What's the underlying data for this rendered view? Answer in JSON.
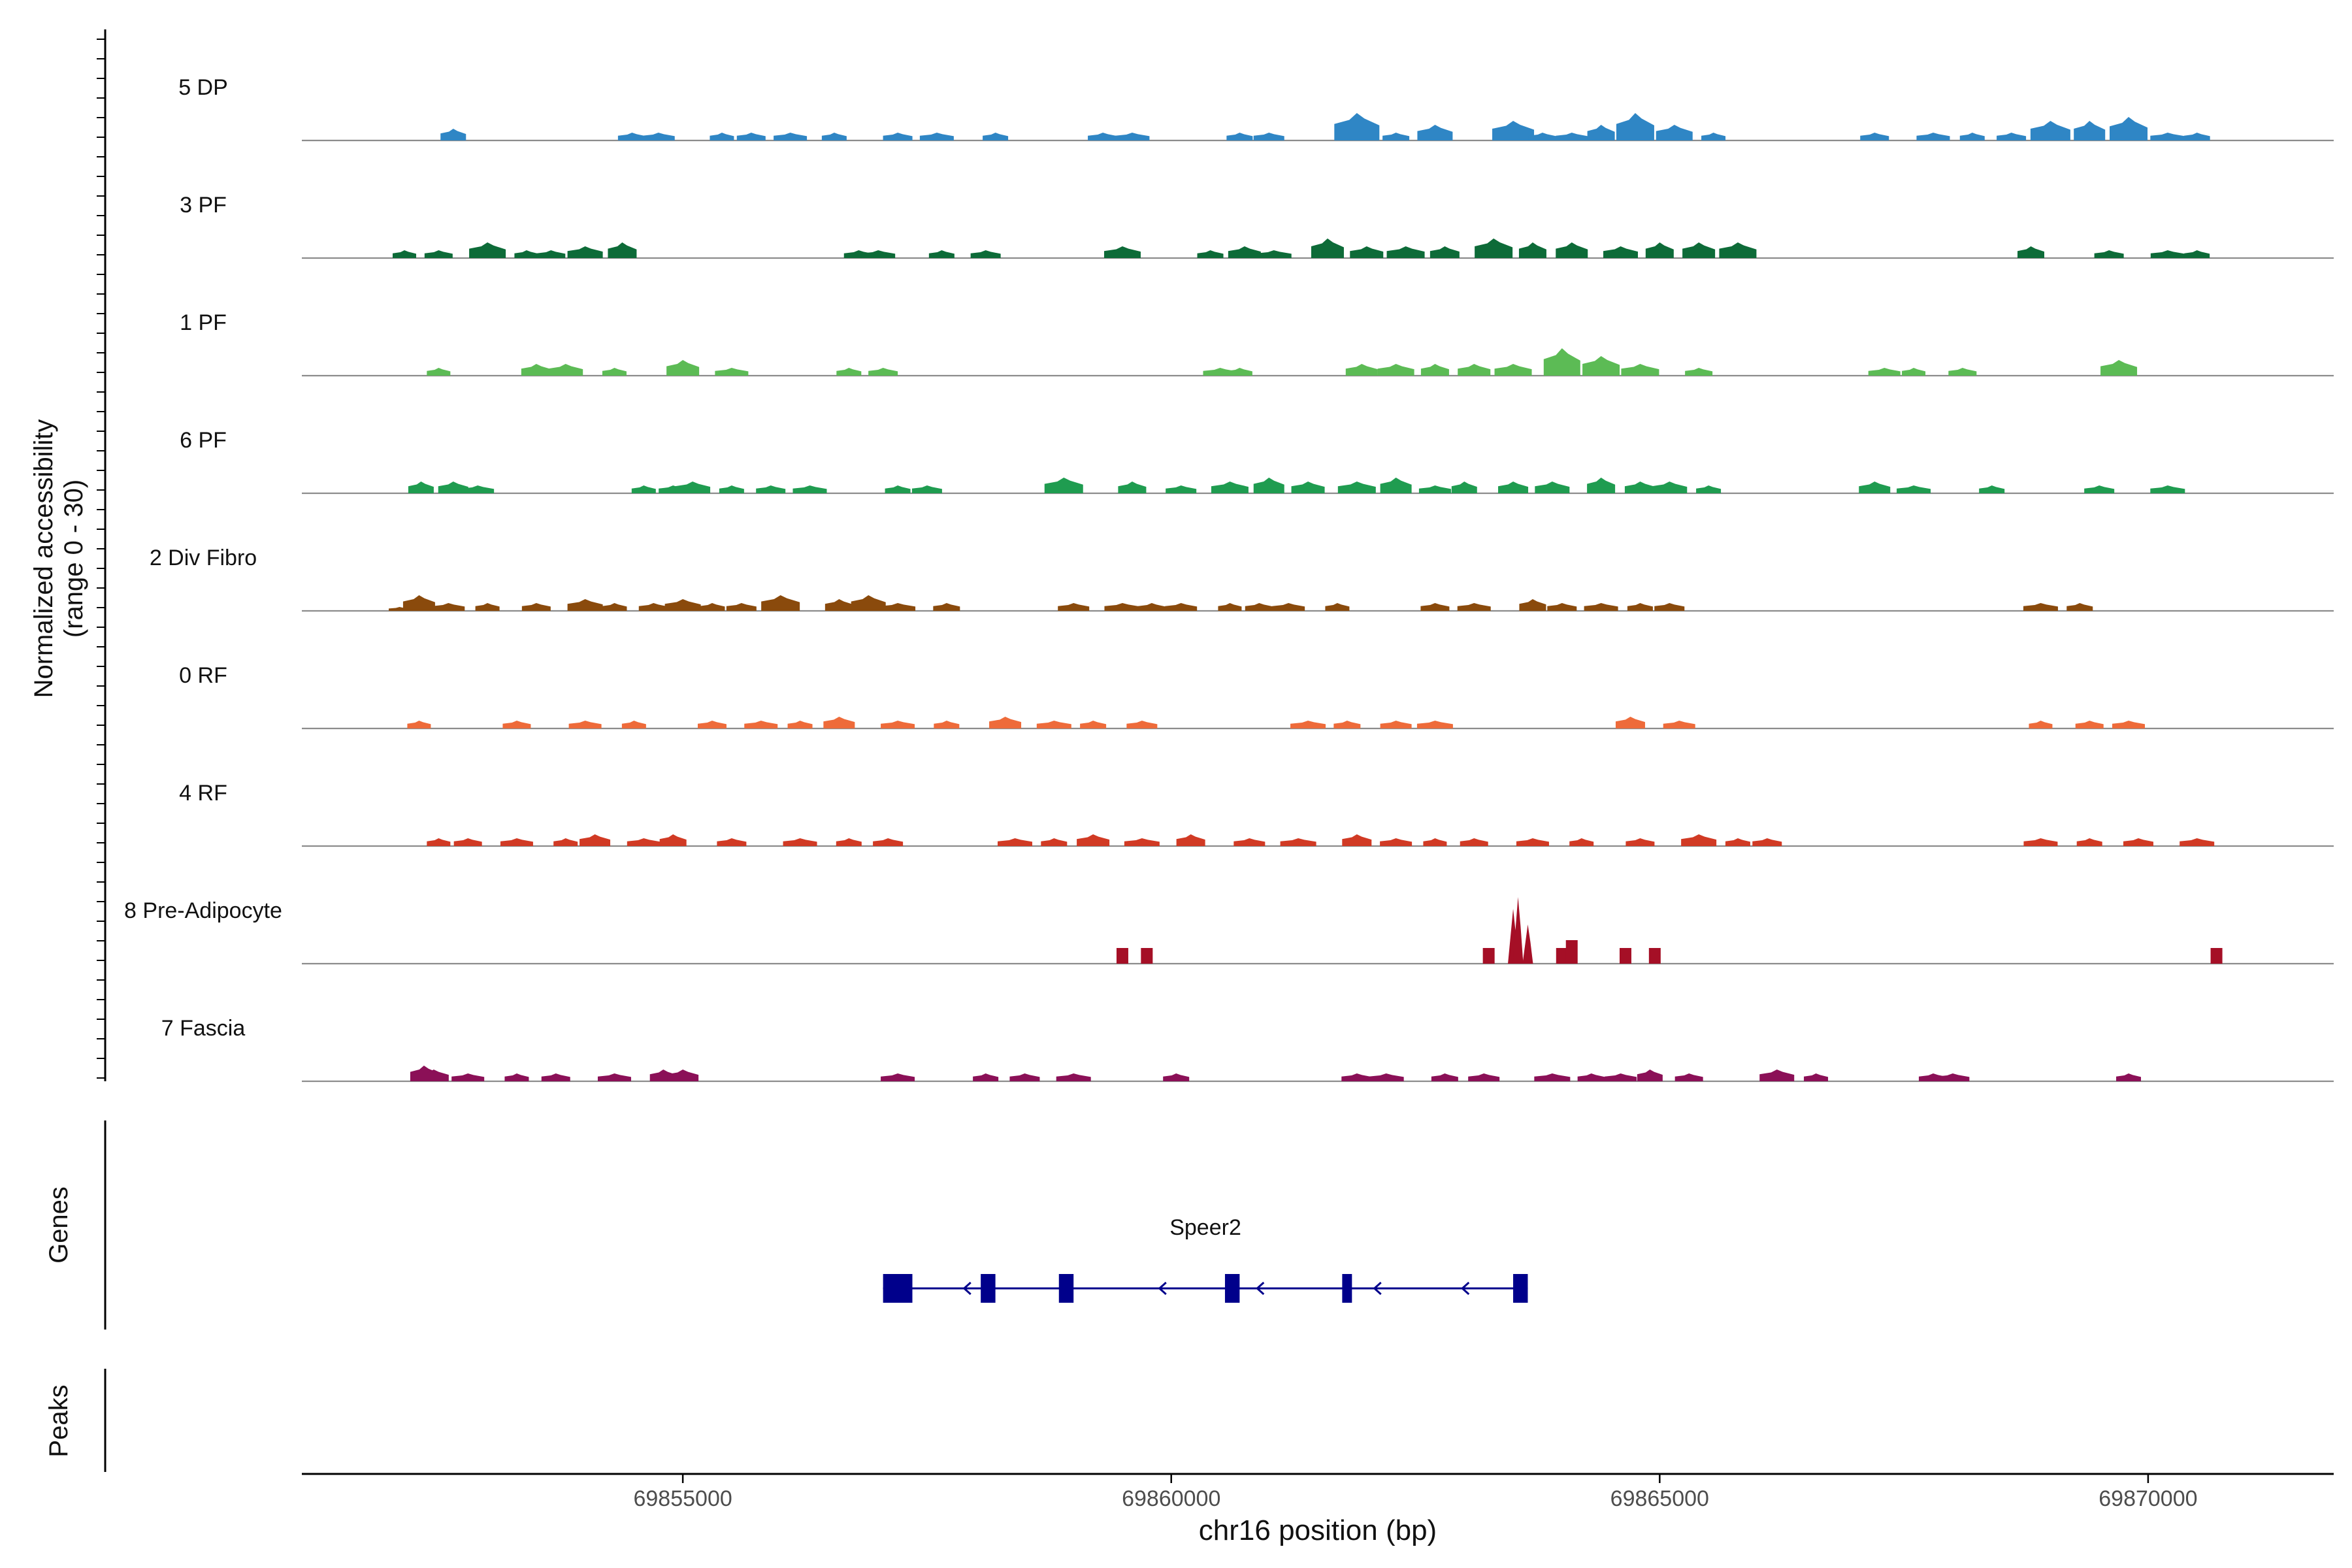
{
  "chart_data": {
    "type": "area",
    "title": "",
    "chromosome": "chr16",
    "xlabel": "chr16 position (bp)",
    "ylabel": "Normalized accessibility",
    "ylabel_range": "(range 0 - 30)",
    "xlim": [
      69851100,
      69871900
    ],
    "ylim": [
      0,
      30
    ],
    "x_ticks": [
      69855000,
      69860000,
      69865000,
      69870000
    ],
    "x_tick_labels": [
      "69855000",
      "69860000",
      "69865000",
      "69870000"
    ],
    "tracks": [
      {
        "name": "5 DP",
        "color": "#2f86c5",
        "peaks": [
          [
            69852650,
            3
          ],
          [
            69854480,
            2
          ],
          [
            69854750,
            2
          ],
          [
            69855400,
            2
          ],
          [
            69855700,
            2
          ],
          [
            69856100,
            2
          ],
          [
            69856550,
            2
          ],
          [
            69857200,
            2
          ],
          [
            69857600,
            2
          ],
          [
            69858200,
            2
          ],
          [
            69859300,
            2
          ],
          [
            69859600,
            2
          ],
          [
            69860700,
            2
          ],
          [
            69861000,
            2
          ],
          [
            69861900,
            7
          ],
          [
            69862300,
            2
          ],
          [
            69862700,
            4
          ],
          [
            69863500,
            5
          ],
          [
            69863800,
            2
          ],
          [
            69864100,
            2
          ],
          [
            69864400,
            4
          ],
          [
            69864750,
            7
          ],
          [
            69865150,
            4
          ],
          [
            69865550,
            2
          ],
          [
            69867200,
            2
          ],
          [
            69867800,
            2
          ],
          [
            69868200,
            2
          ],
          [
            69868600,
            2
          ],
          [
            69869000,
            5
          ],
          [
            69869400,
            5
          ],
          [
            69869800,
            6
          ],
          [
            69870200,
            2
          ],
          [
            69870500,
            2
          ]
        ]
      },
      {
        "name": "3 PF",
        "color": "#0d6b38",
        "peaks": [
          [
            69852150,
            2
          ],
          [
            69852500,
            2
          ],
          [
            69853000,
            4
          ],
          [
            69853400,
            2
          ],
          [
            69853650,
            2
          ],
          [
            69854000,
            3
          ],
          [
            69854380,
            4
          ],
          [
            69856800,
            2
          ],
          [
            69857000,
            2
          ],
          [
            69857650,
            2
          ],
          [
            69858100,
            2
          ],
          [
            69859500,
            3
          ],
          [
            69860400,
            2
          ],
          [
            69860750,
            3
          ],
          [
            69861050,
            2
          ],
          [
            69861600,
            5
          ],
          [
            69862000,
            3
          ],
          [
            69862400,
            3
          ],
          [
            69862800,
            3
          ],
          [
            69863300,
            5
          ],
          [
            69863700,
            4
          ],
          [
            69864100,
            4
          ],
          [
            69864600,
            3
          ],
          [
            69865000,
            4
          ],
          [
            69865400,
            4
          ],
          [
            69865800,
            4
          ],
          [
            69868800,
            3
          ],
          [
            69869600,
            2
          ],
          [
            69870200,
            2
          ],
          [
            69870500,
            2
          ]
        ]
      },
      {
        "name": "1 PF",
        "color": "#5cbb55",
        "peaks": [
          [
            69852500,
            2
          ],
          [
            69853500,
            3
          ],
          [
            69853800,
            3
          ],
          [
            69854300,
            2
          ],
          [
            69855000,
            4
          ],
          [
            69855500,
            2
          ],
          [
            69856700,
            2
          ],
          [
            69857050,
            2
          ],
          [
            69860500,
            2
          ],
          [
            69860700,
            2
          ],
          [
            69861950,
            3
          ],
          [
            69862300,
            3
          ],
          [
            69862700,
            3
          ],
          [
            69863100,
            3
          ],
          [
            69863500,
            3
          ],
          [
            69864000,
            7
          ],
          [
            69864400,
            5
          ],
          [
            69864800,
            3
          ],
          [
            69865400,
            2
          ],
          [
            69867300,
            2
          ],
          [
            69867600,
            2
          ],
          [
            69868100,
            2
          ],
          [
            69869700,
            4
          ]
        ]
      },
      {
        "name": "6 PF",
        "color": "#1f9c50",
        "peaks": [
          [
            69852320,
            3
          ],
          [
            69852650,
            3
          ],
          [
            69852900,
            2
          ],
          [
            69854600,
            2
          ],
          [
            69854900,
            2
          ],
          [
            69855100,
            3
          ],
          [
            69855500,
            2
          ],
          [
            69855900,
            2
          ],
          [
            69856300,
            2
          ],
          [
            69857200,
            2
          ],
          [
            69857500,
            2
          ],
          [
            69858900,
            4
          ],
          [
            69859600,
            3
          ],
          [
            69860100,
            2
          ],
          [
            69860600,
            3
          ],
          [
            69861000,
            4
          ],
          [
            69861400,
            3
          ],
          [
            69861900,
            3
          ],
          [
            69862300,
            4
          ],
          [
            69862700,
            2
          ],
          [
            69863000,
            3
          ],
          [
            69863500,
            3
          ],
          [
            69863900,
            3
          ],
          [
            69864400,
            4
          ],
          [
            69864800,
            3
          ],
          [
            69865100,
            3
          ],
          [
            69865500,
            2
          ],
          [
            69867200,
            3
          ],
          [
            69867600,
            2
          ],
          [
            69868400,
            2
          ],
          [
            69869500,
            2
          ],
          [
            69870200,
            2
          ]
        ]
      },
      {
        "name": "2 Div Fibro",
        "color": "#8a4a0c",
        "peaks": [
          [
            69852100,
            1
          ],
          [
            69852300,
            4
          ],
          [
            69852600,
            2
          ],
          [
            69853000,
            2
          ],
          [
            69853500,
            2
          ],
          [
            69854000,
            3
          ],
          [
            69854300,
            2
          ],
          [
            69854700,
            2
          ],
          [
            69855000,
            3
          ],
          [
            69855300,
            2
          ],
          [
            69855600,
            2
          ],
          [
            69856000,
            4
          ],
          [
            69856600,
            3
          ],
          [
            69856900,
            4
          ],
          [
            69857200,
            2
          ],
          [
            69857700,
            2
          ],
          [
            69859000,
            2
          ],
          [
            69859500,
            2
          ],
          [
            69859800,
            2
          ],
          [
            69860100,
            2
          ],
          [
            69860600,
            2
          ],
          [
            69860900,
            2
          ],
          [
            69861200,
            2
          ],
          [
            69861700,
            2
          ],
          [
            69862700,
            2
          ],
          [
            69863100,
            2
          ],
          [
            69863700,
            3
          ],
          [
            69864000,
            2
          ],
          [
            69864400,
            2
          ],
          [
            69864800,
            2
          ],
          [
            69865100,
            2
          ],
          [
            69868900,
            2
          ],
          [
            69869300,
            2
          ]
        ]
      },
      {
        "name": "0 RF",
        "color": "#ee6b3a",
        "peaks": [
          [
            69852300,
            2
          ],
          [
            69853300,
            2
          ],
          [
            69854000,
            2
          ],
          [
            69854500,
            2
          ],
          [
            69855300,
            2
          ],
          [
            69855800,
            2
          ],
          [
            69856200,
            2
          ],
          [
            69856600,
            3
          ],
          [
            69857200,
            2
          ],
          [
            69857700,
            2
          ],
          [
            69858300,
            3
          ],
          [
            69858800,
            2
          ],
          [
            69859200,
            2
          ],
          [
            69859700,
            2
          ],
          [
            69861400,
            2
          ],
          [
            69861800,
            2
          ],
          [
            69862300,
            2
          ],
          [
            69862700,
            2
          ],
          [
            69864700,
            3
          ],
          [
            69865200,
            2
          ],
          [
            69868900,
            2
          ],
          [
            69869400,
            2
          ],
          [
            69869800,
            2
          ]
        ]
      },
      {
        "name": "4 RF",
        "color": "#d13a24",
        "peaks": [
          [
            69852500,
            2
          ],
          [
            69852800,
            2
          ],
          [
            69853300,
            2
          ],
          [
            69853800,
            2
          ],
          [
            69854100,
            3
          ],
          [
            69854600,
            2
          ],
          [
            69854900,
            3
          ],
          [
            69855500,
            2
          ],
          [
            69856200,
            2
          ],
          [
            69856700,
            2
          ],
          [
            69857100,
            2
          ],
          [
            69858400,
            2
          ],
          [
            69858800,
            2
          ],
          [
            69859200,
            3
          ],
          [
            69859700,
            2
          ],
          [
            69860200,
            3
          ],
          [
            69860800,
            2
          ],
          [
            69861300,
            2
          ],
          [
            69861900,
            3
          ],
          [
            69862300,
            2
          ],
          [
            69862700,
            2
          ],
          [
            69863100,
            2
          ],
          [
            69863700,
            2
          ],
          [
            69864200,
            2
          ],
          [
            69864800,
            2
          ],
          [
            69865400,
            3
          ],
          [
            69865800,
            2
          ],
          [
            69866100,
            2
          ],
          [
            69868900,
            2
          ],
          [
            69869400,
            2
          ],
          [
            69869900,
            2
          ],
          [
            69870500,
            2
          ]
        ]
      },
      {
        "name": "8 Pre-Adipocyte",
        "color": "#a50f26",
        "peaks": [
          [
            69859500,
            4
          ],
          [
            69859750,
            4
          ],
          [
            69863250,
            4
          ],
          [
            69863500,
            14
          ],
          [
            69863550,
            17
          ],
          [
            69863650,
            10
          ],
          [
            69864000,
            4
          ],
          [
            69864100,
            6
          ],
          [
            69864650,
            4
          ],
          [
            69864950,
            4
          ],
          [
            69870700,
            4
          ]
        ]
      },
      {
        "name": "7 Fascia",
        "color": "#8b1057",
        "peaks": [
          [
            69852350,
            4
          ],
          [
            69852450,
            3
          ],
          [
            69852800,
            2
          ],
          [
            69853300,
            2
          ],
          [
            69853700,
            2
          ],
          [
            69854300,
            2
          ],
          [
            69854800,
            3
          ],
          [
            69855000,
            3
          ],
          [
            69857200,
            2
          ],
          [
            69858100,
            2
          ],
          [
            69858500,
            2
          ],
          [
            69859000,
            2
          ],
          [
            69860050,
            2
          ],
          [
            69861900,
            2
          ],
          [
            69862200,
            2
          ],
          [
            69862800,
            2
          ],
          [
            69863200,
            2
          ],
          [
            69863900,
            2
          ],
          [
            69864300,
            2
          ],
          [
            69864600,
            2
          ],
          [
            69864900,
            3
          ],
          [
            69865300,
            2
          ],
          [
            69866200,
            3
          ],
          [
            69866600,
            2
          ],
          [
            69867800,
            2
          ],
          [
            69868000,
            2
          ],
          [
            69869800,
            2
          ]
        ]
      }
    ],
    "genes": [
      {
        "name": "Speer2",
        "start": 69857050,
        "end": 69863650,
        "strand": "-",
        "exons": [
          [
            69857050,
            69857350
          ],
          [
            69858050,
            69858200
          ],
          [
            69858850,
            69859000
          ],
          [
            69860550,
            69860700
          ],
          [
            69861750,
            69861850
          ],
          [
            69863500,
            69863650
          ]
        ],
        "arrows": [
          69857900,
          69858900,
          69859900,
          69860900,
          69862100,
          69863000
        ]
      }
    ],
    "panels": {
      "genes_label": "Genes",
      "peaks_label": "Peaks"
    },
    "peaks": []
  }
}
